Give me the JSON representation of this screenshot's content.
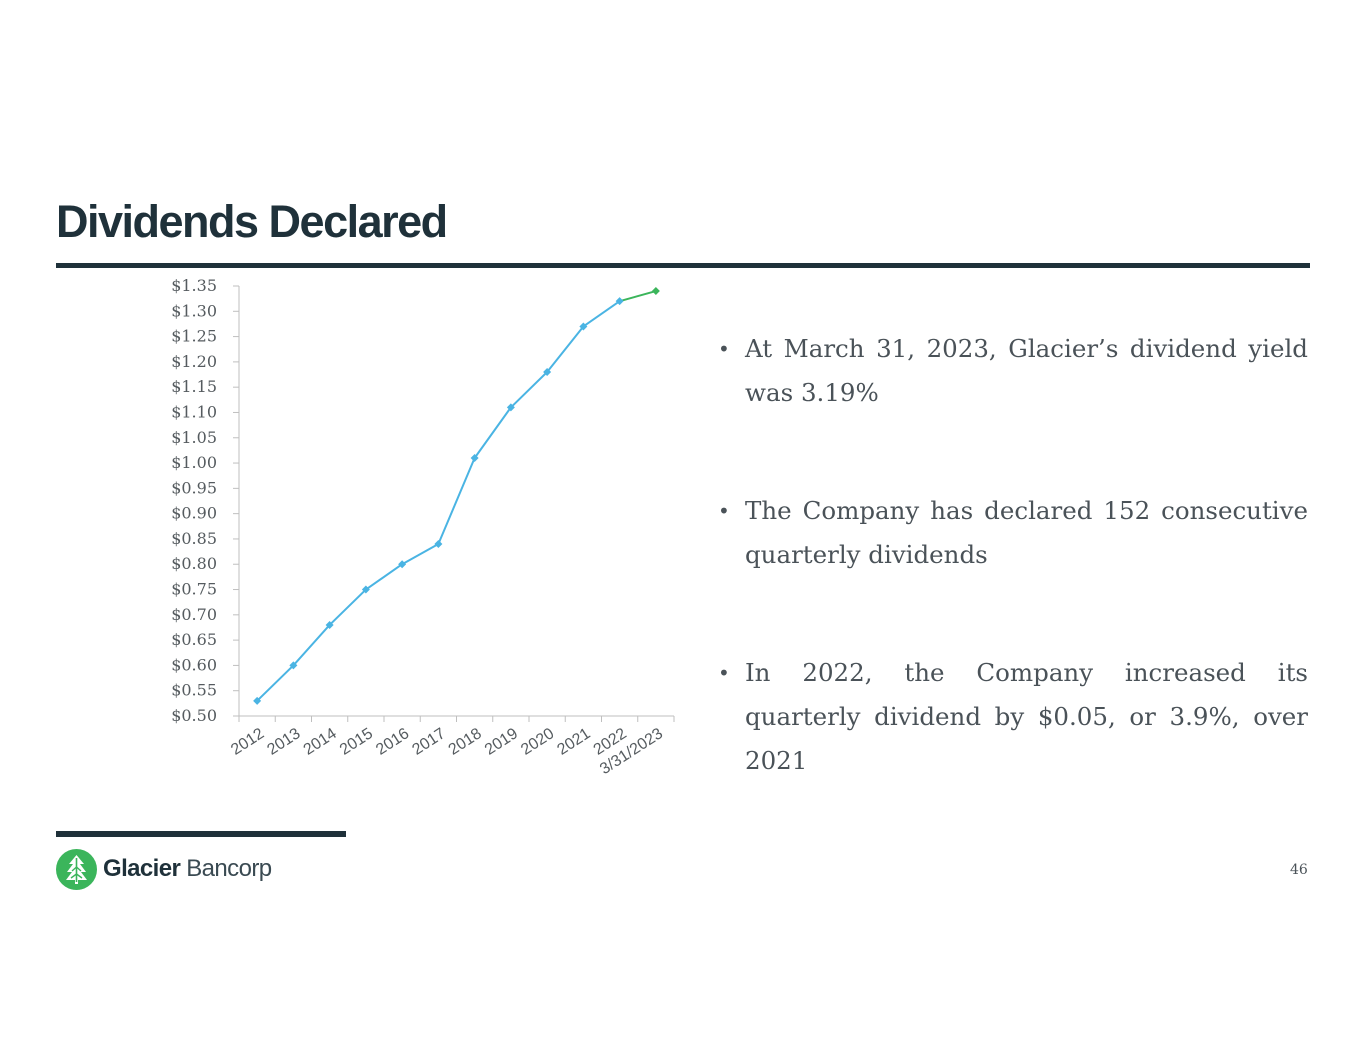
{
  "slide": {
    "title": "Dividends Declared",
    "page_number": "46"
  },
  "bullets": [
    "At March 31, 2023, Glacier’s dividend yield was 3.19%",
    "The Company has declared 152 consecutive quarterly dividends",
    "In 2022, the Company increased its quarterly dividend by $0.05, or 3.9%, over 2021"
  ],
  "logo": {
    "name_bold": "Glacier",
    "name_light": "Bancorp",
    "icon": "evergreen-tree-icon",
    "brand_color": "#3bb55b"
  },
  "colors": {
    "title": "#1f313a",
    "series_line": "#4ab4e3",
    "last_segment": "#3bb55b"
  },
  "chart_data": {
    "type": "line",
    "categories": [
      "2012",
      "2013",
      "2014",
      "2015",
      "2016",
      "2017",
      "2018",
      "2019",
      "2020",
      "2021",
      "2022",
      "3/31/2023"
    ],
    "values": [
      0.53,
      0.6,
      0.68,
      0.75,
      0.8,
      0.84,
      1.01,
      1.11,
      1.18,
      1.27,
      1.32,
      1.34
    ],
    "ylim": [
      0.5,
      1.35
    ],
    "ytick_step": 0.05,
    "ytick_prefix": "$",
    "grid": false,
    "legend": "none",
    "title": "",
    "xlabel": "",
    "ylabel": ""
  }
}
